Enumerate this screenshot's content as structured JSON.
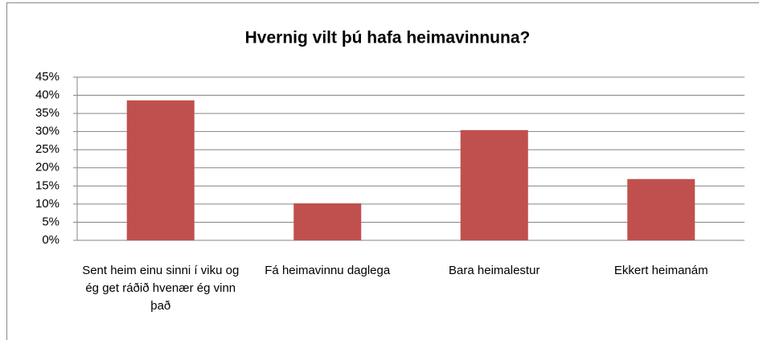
{
  "chart_data": {
    "type": "bar",
    "title": "Hvernig vilt þú hafa heimavinnuna?",
    "categories": [
      "Sent heim einu sinni í viku og ég get ráðið hvenær ég vinn það",
      "Fá heimavinnu daglega",
      "Bara heimalestur",
      "Ekkert heimanám"
    ],
    "values": [
      38.6,
      10.2,
      30.4,
      16.9
    ],
    "color": "#c0504d",
    "ylim": [
      0,
      45
    ],
    "yticks": [
      {
        "value": 0,
        "label": "0%"
      },
      {
        "value": 5,
        "label": "5%"
      },
      {
        "value": 10,
        "label": "10%"
      },
      {
        "value": 15,
        "label": "15%"
      },
      {
        "value": 20,
        "label": "20%"
      },
      {
        "value": 25,
        "label": "25%"
      },
      {
        "value": 30,
        "label": "30%"
      },
      {
        "value": 35,
        "label": "35%"
      },
      {
        "value": 40,
        "label": "40%"
      },
      {
        "value": 45,
        "label": "45%"
      }
    ],
    "grid": true
  }
}
